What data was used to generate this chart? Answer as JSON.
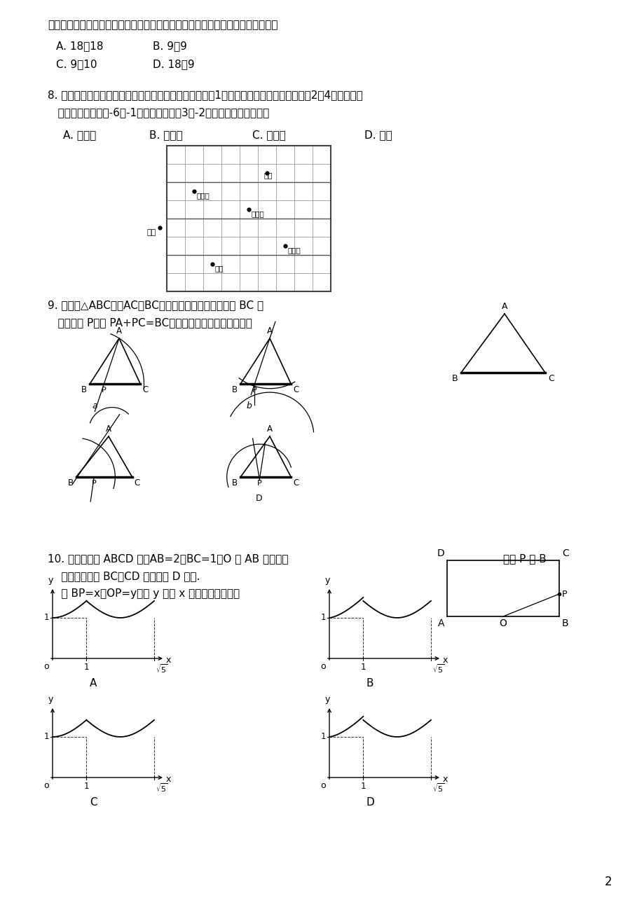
{
  "page_num": "2",
  "bg_color": "#ffffff",
  "q7_line": "制了如图所示的折线统计图，则在体育锻炼时间这组数据中，众数和中位数分别是",
  "q7_A": "A. 18，18",
  "q7_B": "B. 9，9",
  "q7_C": "C. 9，10",
  "q7_D": "D. 18，9",
  "q8_line1": "8. 下图是某中学的平面示意图，每个正方形格子的边长为1，如果校门所在位置的坐标为（2，4），小明所",
  "q8_line2": "   在位置的坐标为（-6，-1），那么坐标（3，-2）在示意图中表示的是",
  "q8_A": "A. 图书馆",
  "q8_B": "B. 教学楼",
  "q8_C": "C. 实验楼",
  "q8_D": "D. 食堂",
  "q9_line1": "9. 如图，△ABC中，AC＜BC，如果用尺规作图的方法在 BC 上",
  "q9_line2": "   确定一点 P，使 PA+PC=BC，那么符合要求的作图痕迹是",
  "q10_line1": "10. 如图，矩形 ABCD 中，AB=2，BC=1，O 是 AB 的中点，",
  "q10_line2": "    点开始沿着边 BC、CD 运动到点 D 结束.",
  "q10_line3": "    设 BP=x，OP=y，则 y 关于 x 的函数图象大致为",
  "q10_right": "动点 P 从 B"
}
